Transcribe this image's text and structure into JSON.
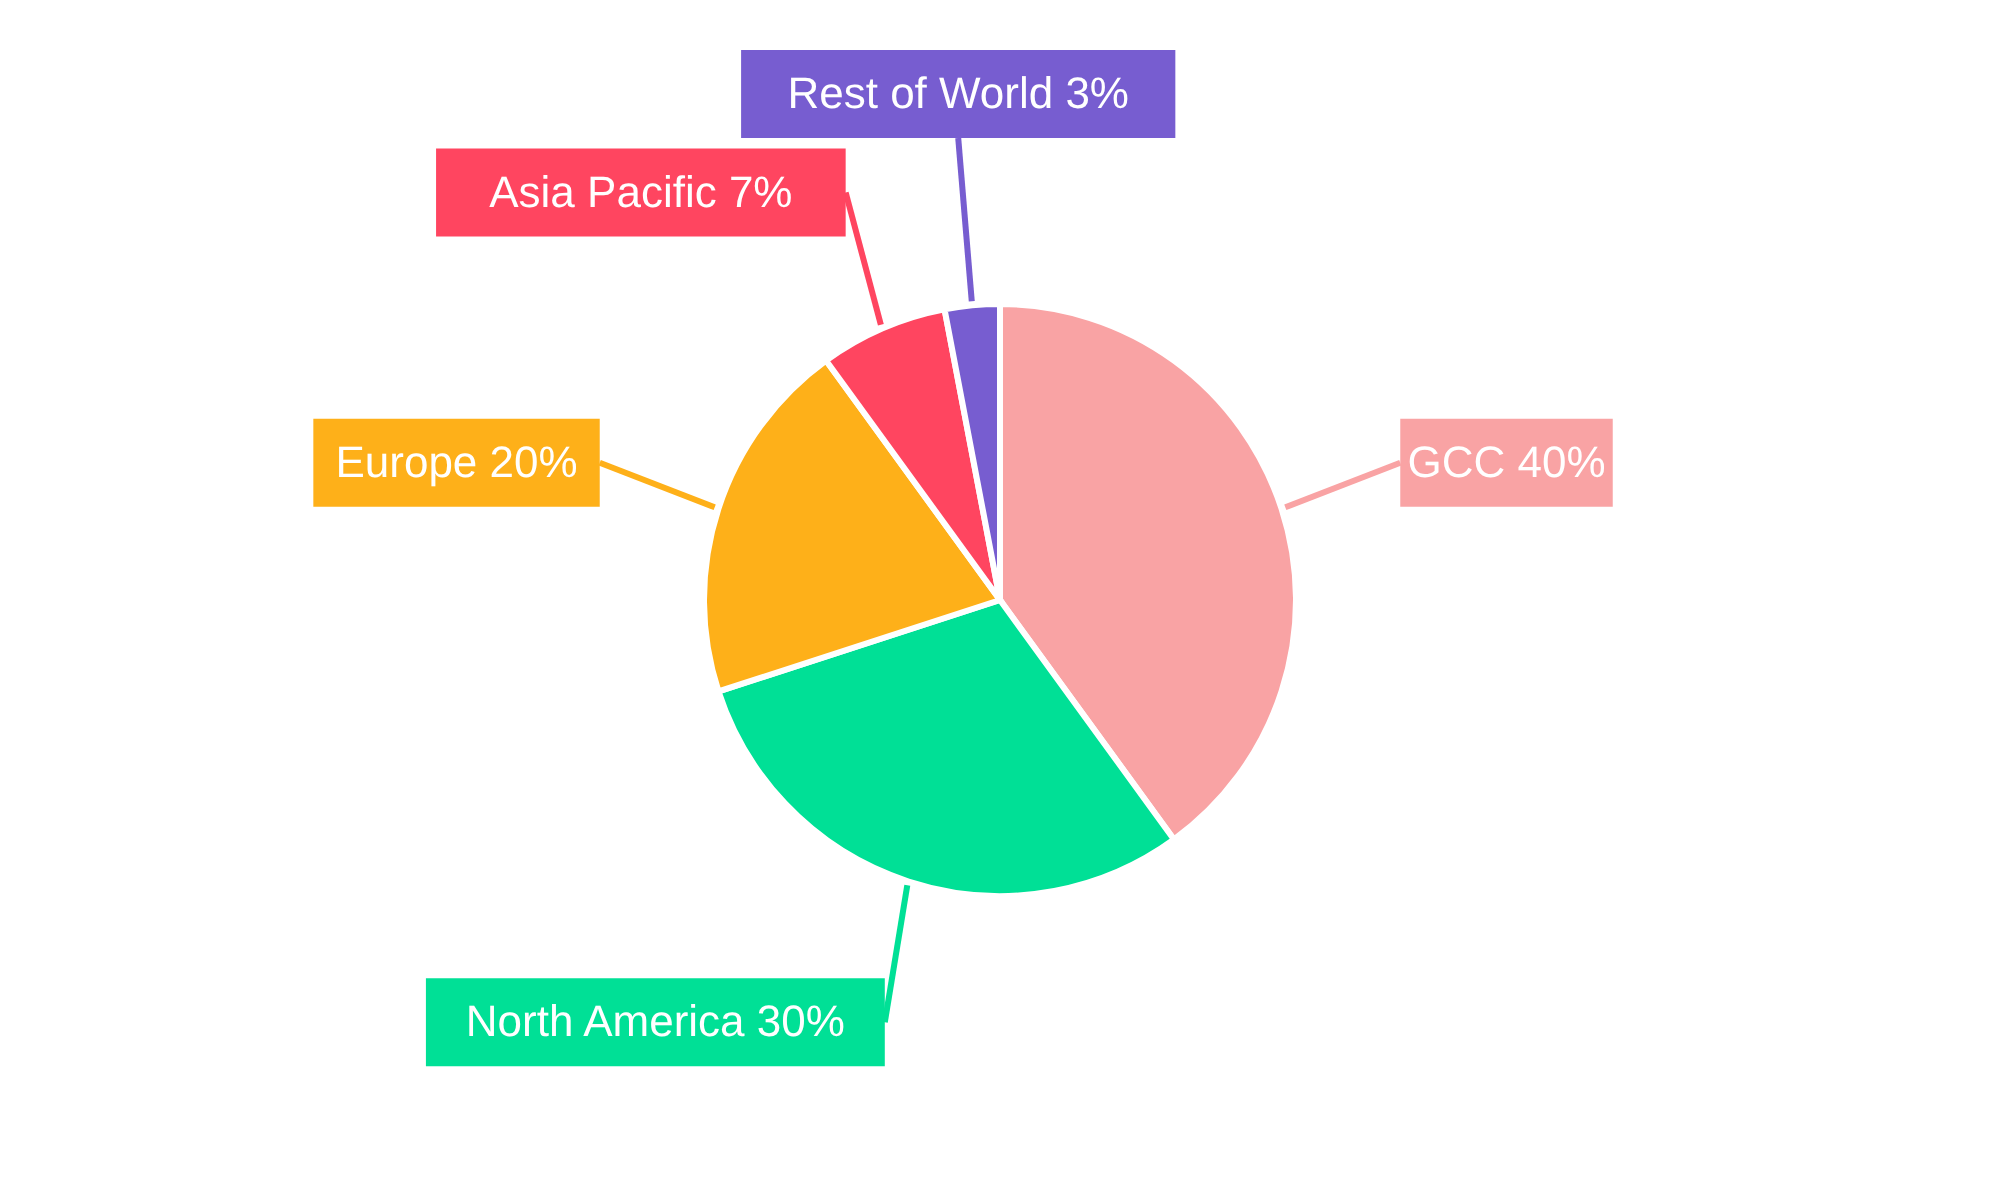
{
  "chart_data": {
    "type": "pie",
    "categories": [
      "GCC",
      "North America",
      "Europe",
      "Asia Pacific",
      "Rest of World"
    ],
    "values": [
      40,
      30,
      20,
      7,
      3
    ],
    "value_labels": [
      "40%",
      "30%",
      "20%",
      "7%",
      "3%"
    ],
    "colors": [
      "#f9a3a4",
      "#00e096",
      "#feb019",
      "#ff4560",
      "#775dd0"
    ]
  }
}
